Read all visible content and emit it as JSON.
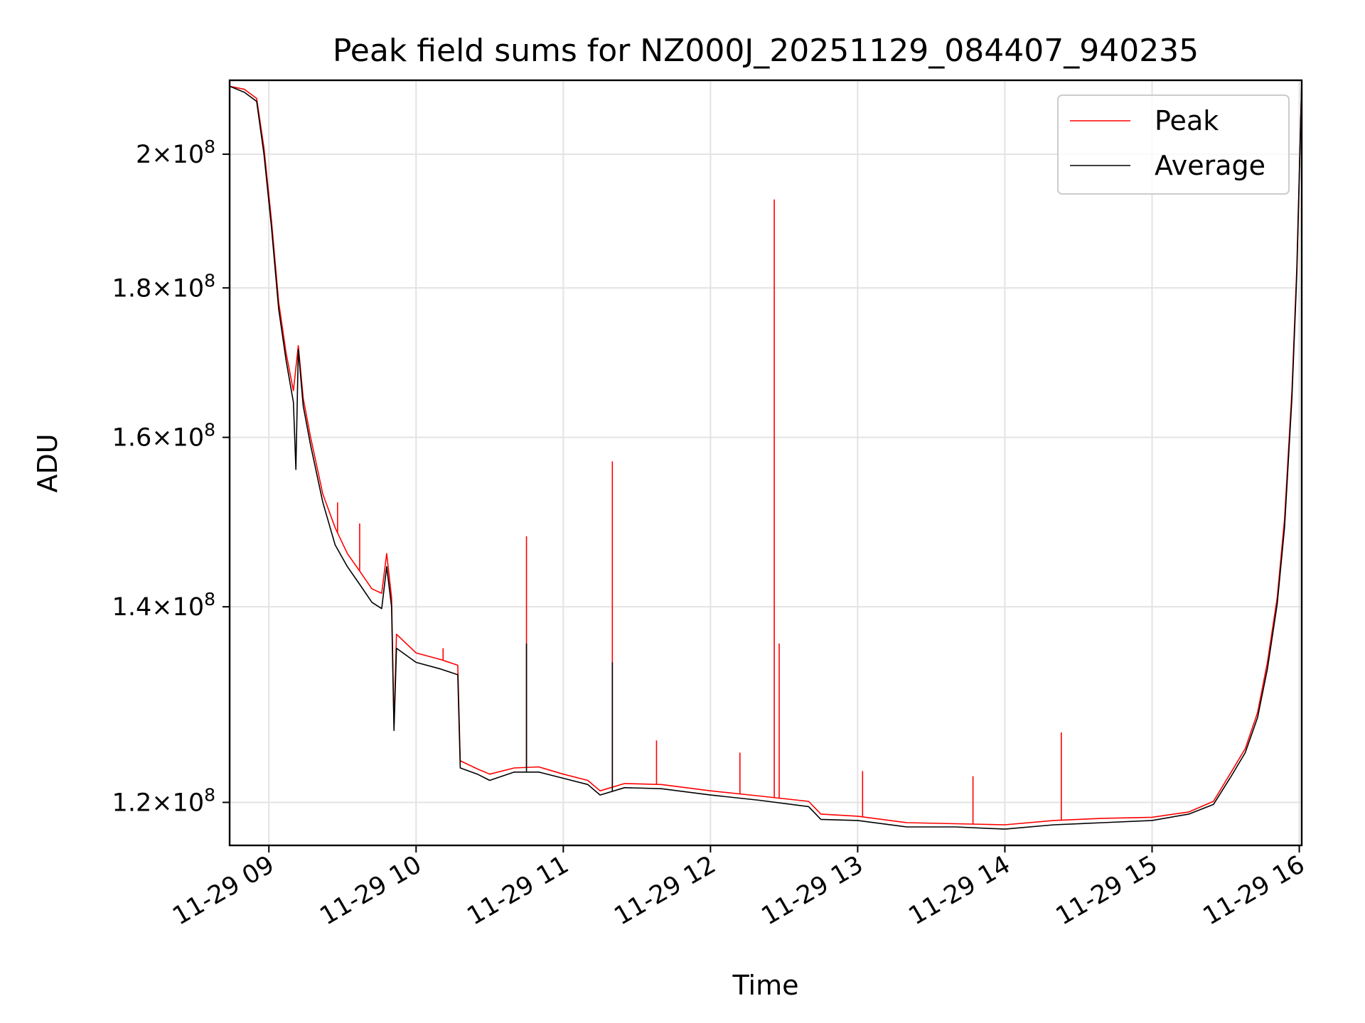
{
  "chart_data": {
    "type": "line",
    "title": "Peak field sums for NZ000J_20251129_084407_940235",
    "xlabel": "Time",
    "ylabel": "ADU",
    "y_scale": "log",
    "xlim": [
      "2025-11-29 08:44",
      "2025-11-29 16:01"
    ],
    "ylim": [
      116000000,
      212000000
    ],
    "grid": true,
    "legend_position": "upper right",
    "x_ticks": [
      {
        "value": "2025-11-29 09:00",
        "label": "11-29 09"
      },
      {
        "value": "2025-11-29 10:00",
        "label": "11-29 10"
      },
      {
        "value": "2025-11-29 11:00",
        "label": "11-29 11"
      },
      {
        "value": "2025-11-29 12:00",
        "label": "11-29 12"
      },
      {
        "value": "2025-11-29 13:00",
        "label": "11-29 13"
      },
      {
        "value": "2025-11-29 14:00",
        "label": "11-29 14"
      },
      {
        "value": "2025-11-29 15:00",
        "label": "11-29 15"
      },
      {
        "value": "2025-11-29 16:00",
        "label": "11-29 16"
      }
    ],
    "y_ticks": [
      {
        "value": 120000000,
        "mantissa": "1.2",
        "exponent": "8"
      },
      {
        "value": 140000000,
        "mantissa": "1.4",
        "exponent": "8"
      },
      {
        "value": 160000000,
        "mantissa": "1.6",
        "exponent": "8"
      },
      {
        "value": 180000000,
        "mantissa": "1.8",
        "exponent": "8"
      },
      {
        "value": 200000000,
        "mantissa": "2",
        "exponent": "8"
      }
    ],
    "series": [
      {
        "name": "Peak",
        "color": "#ff0000",
        "points": [
          [
            "2025-11-29 08:44",
            211000000
          ],
          [
            "2025-11-29 08:50",
            210500000
          ],
          [
            "2025-11-29 08:55",
            209000000
          ],
          [
            "2025-11-29 08:58",
            201000000
          ],
          [
            "2025-11-29 09:01",
            190000000
          ],
          [
            "2025-11-29 09:04",
            178000000
          ],
          [
            "2025-11-29 09:07",
            171000000
          ],
          [
            "2025-11-29 09:10",
            166000000
          ],
          [
            "2025-11-29 09:12",
            172000000
          ],
          [
            "2025-11-29 09:14",
            165000000
          ],
          [
            "2025-11-29 09:17",
            160000000
          ],
          [
            "2025-11-29 09:22",
            153000000
          ],
          [
            "2025-11-29 09:27",
            149000000
          ],
          [
            "2025-11-29 09:32",
            146000000
          ],
          [
            "2025-11-29 09:37",
            144000000
          ],
          [
            "2025-11-29 09:42",
            142000000
          ],
          [
            "2025-11-29 09:46",
            141500000
          ],
          [
            "2025-11-29 09:48",
            146000000
          ],
          [
            "2025-11-29 09:50",
            141000000
          ],
          [
            "2025-11-29 09:51",
            127500000
          ],
          [
            "2025-11-29 09:52",
            137000000
          ],
          [
            "2025-11-29 10:00",
            135000000
          ],
          [
            "2025-11-29 10:10",
            134300000
          ],
          [
            "2025-11-29 10:17",
            133700000
          ],
          [
            "2025-11-29 10:18",
            124000000
          ],
          [
            "2025-11-29 10:25",
            123200000
          ],
          [
            "2025-11-29 10:30",
            122700000
          ],
          [
            "2025-11-29 10:40",
            123300000
          ],
          [
            "2025-11-29 10:50",
            123400000
          ],
          [
            "2025-11-29 11:00",
            122700000
          ],
          [
            "2025-11-29 11:10",
            122100000
          ],
          [
            "2025-11-29 11:15",
            121100000
          ],
          [
            "2025-11-29 11:25",
            121800000
          ],
          [
            "2025-11-29 11:40",
            121700000
          ],
          [
            "2025-11-29 12:00",
            121100000
          ],
          [
            "2025-11-29 12:20",
            120600000
          ],
          [
            "2025-11-29 12:40",
            120100000
          ],
          [
            "2025-11-29 12:45",
            118900000
          ],
          [
            "2025-11-29 13:00",
            118700000
          ],
          [
            "2025-11-29 13:20",
            118100000
          ],
          [
            "2025-11-29 13:40",
            118000000
          ],
          [
            "2025-11-29 14:00",
            117900000
          ],
          [
            "2025-11-29 14:20",
            118300000
          ],
          [
            "2025-11-29 14:40",
            118500000
          ],
          [
            "2025-11-29 15:00",
            118600000
          ],
          [
            "2025-11-29 15:15",
            119100000
          ],
          [
            "2025-11-29 15:25",
            120100000
          ],
          [
            "2025-11-29 15:32",
            122800000
          ],
          [
            "2025-11-29 15:38",
            125200000
          ],
          [
            "2025-11-29 15:43",
            128800000
          ],
          [
            "2025-11-29 15:47",
            134000000
          ],
          [
            "2025-11-29 15:51",
            141000000
          ],
          [
            "2025-11-29 15:54",
            150000000
          ],
          [
            "2025-11-29 15:57",
            166000000
          ],
          [
            "2025-11-29 15:59",
            183000000
          ],
          [
            "2025-11-29 16:01",
            212000000
          ]
        ],
        "spikes": [
          [
            "2025-11-29 10:45",
            148000000
          ],
          [
            "2025-11-29 11:20",
            157000000
          ],
          [
            "2025-11-29 12:26",
            193000000
          ],
          [
            "2025-11-29 12:28",
            136000000
          ],
          [
            "2025-11-29 13:02",
            123000000
          ],
          [
            "2025-11-29 13:47",
            122500000
          ],
          [
            "2025-11-29 14:23",
            126800000
          ],
          [
            "2025-11-29 10:11",
            135500000
          ],
          [
            "2025-11-29 09:37",
            149500000
          ],
          [
            "2025-11-29 09:28",
            152000000
          ],
          [
            "2025-11-29 12:12",
            124800000
          ],
          [
            "2025-11-29 11:38",
            126000000
          ]
        ]
      },
      {
        "name": "Average",
        "color": "#000000",
        "points": [
          [
            "2025-11-29 08:44",
            211000000
          ],
          [
            "2025-11-29 08:50",
            210000000
          ],
          [
            "2025-11-29 08:55",
            208500000
          ],
          [
            "2025-11-29 08:58",
            200000000
          ],
          [
            "2025-11-29 09:01",
            189000000
          ],
          [
            "2025-11-29 09:04",
            177000000
          ],
          [
            "2025-11-29 09:07",
            170000000
          ],
          [
            "2025-11-29 09:10",
            164500000
          ],
          [
            "2025-11-29 09:11",
            156000000
          ],
          [
            "2025-11-29 09:12",
            171500000
          ],
          [
            "2025-11-29 09:14",
            164000000
          ],
          [
            "2025-11-29 09:17",
            159000000
          ],
          [
            "2025-11-29 09:22",
            152000000
          ],
          [
            "2025-11-29 09:27",
            147000000
          ],
          [
            "2025-11-29 09:32",
            144500000
          ],
          [
            "2025-11-29 09:37",
            142500000
          ],
          [
            "2025-11-29 09:42",
            140500000
          ],
          [
            "2025-11-29 09:46",
            139800000
          ],
          [
            "2025-11-29 09:48",
            144500000
          ],
          [
            "2025-11-29 09:50",
            140000000
          ],
          [
            "2025-11-29 09:51",
            127000000
          ],
          [
            "2025-11-29 09:52",
            135500000
          ],
          [
            "2025-11-29 10:00",
            134000000
          ],
          [
            "2025-11-29 10:10",
            133300000
          ],
          [
            "2025-11-29 10:17",
            132700000
          ],
          [
            "2025-11-29 10:18",
            123300000
          ],
          [
            "2025-11-29 10:25",
            122700000
          ],
          [
            "2025-11-29 10:30",
            122100000
          ],
          [
            "2025-11-29 10:40",
            122900000
          ],
          [
            "2025-11-29 10:50",
            122900000
          ],
          [
            "2025-11-29 11:00",
            122300000
          ],
          [
            "2025-11-29 11:10",
            121700000
          ],
          [
            "2025-11-29 11:15",
            120700000
          ],
          [
            "2025-11-29 11:25",
            121400000
          ],
          [
            "2025-11-29 11:40",
            121300000
          ],
          [
            "2025-11-29 12:00",
            120700000
          ],
          [
            "2025-11-29 12:20",
            120200000
          ],
          [
            "2025-11-29 12:40",
            119600000
          ],
          [
            "2025-11-29 12:45",
            118400000
          ],
          [
            "2025-11-29 13:00",
            118300000
          ],
          [
            "2025-11-29 13:20",
            117700000
          ],
          [
            "2025-11-29 13:40",
            117700000
          ],
          [
            "2025-11-29 14:00",
            117500000
          ],
          [
            "2025-11-29 14:20",
            117900000
          ],
          [
            "2025-11-29 14:40",
            118100000
          ],
          [
            "2025-11-29 15:00",
            118300000
          ],
          [
            "2025-11-29 15:15",
            118900000
          ],
          [
            "2025-11-29 15:25",
            119800000
          ],
          [
            "2025-11-29 15:32",
            122400000
          ],
          [
            "2025-11-29 15:38",
            124800000
          ],
          [
            "2025-11-29 15:43",
            128300000
          ],
          [
            "2025-11-29 15:47",
            133300000
          ],
          [
            "2025-11-29 15:51",
            140300000
          ],
          [
            "2025-11-29 15:54",
            149000000
          ],
          [
            "2025-11-29 15:57",
            165000000
          ],
          [
            "2025-11-29 15:59",
            182000000
          ],
          [
            "2025-11-29 16:01",
            212000000
          ]
        ],
        "spikes": [
          [
            "2025-11-29 10:45",
            136000000
          ],
          [
            "2025-11-29 11:20",
            134000000
          ]
        ]
      }
    ]
  }
}
